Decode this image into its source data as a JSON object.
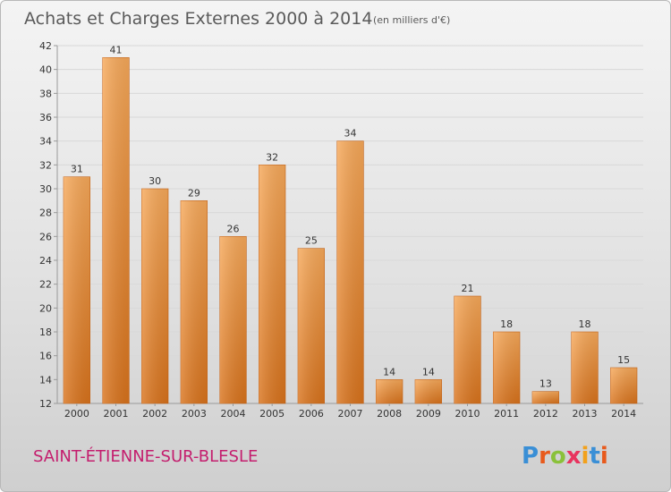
{
  "title": "Achats et Charges Externes 2000 à 2014",
  "subtitle": "(en milliers d'€)",
  "commune": "SAINT-ÉTIENNE-SUR-BLESLE",
  "logo": {
    "text": "Proxiti",
    "letter_colors": [
      "#3a8fd6",
      "#e85a1c",
      "#8ac13a",
      "#e8335e",
      "#f2a11c",
      "#3a8fd6",
      "#e85a1c"
    ]
  },
  "colors": {
    "bar_light": "#f7a95a",
    "bar_dark": "#d9731c",
    "grid": "#d8d8d8",
    "axis": "#999999"
  },
  "chart_data": {
    "type": "bar",
    "title": "Achats et Charges Externes 2000 à 2014",
    "subtitle": "(en milliers d'€)",
    "xlabel": "",
    "ylabel": "",
    "categories": [
      "2000",
      "2001",
      "2002",
      "2003",
      "2004",
      "2005",
      "2006",
      "2007",
      "2008",
      "2009",
      "2010",
      "2011",
      "2012",
      "2013",
      "2014"
    ],
    "values": [
      31,
      41,
      30,
      29,
      26,
      32,
      25,
      34,
      14,
      14,
      21,
      18,
      13,
      18,
      15
    ],
    "ylim": [
      12,
      42
    ],
    "yticks": [
      12,
      14,
      16,
      18,
      20,
      22,
      24,
      26,
      28,
      30,
      32,
      34,
      36,
      38,
      40,
      42
    ],
    "grid": true,
    "legend": "none"
  }
}
